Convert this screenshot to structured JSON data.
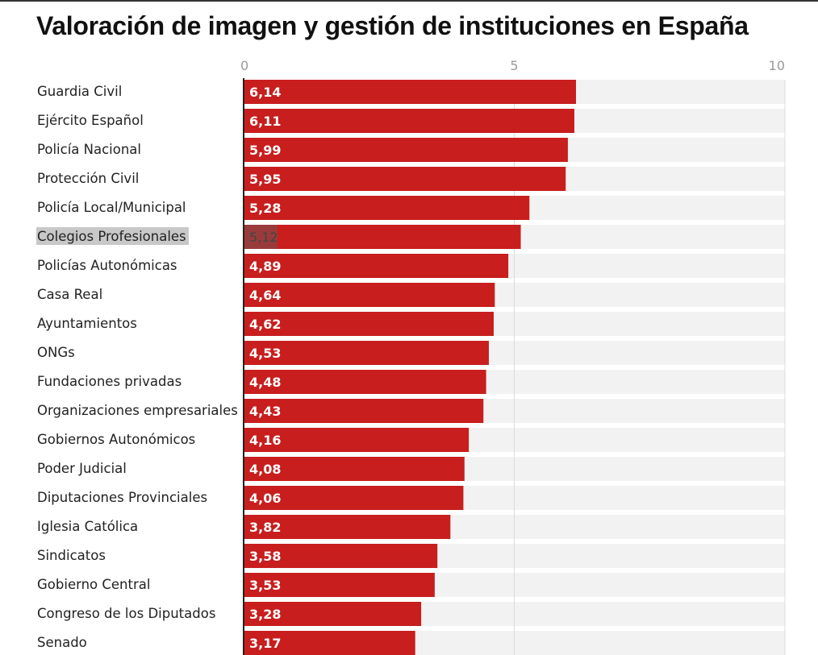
{
  "chart_data": {
    "type": "bar",
    "orientation": "horizontal",
    "title": "Valoración de imagen y gestión de instituciones en España",
    "xlim": [
      0,
      10
    ],
    "x_ticks": [
      "0",
      "5",
      "10"
    ],
    "grid": true,
    "bar_color": "#c81e1e",
    "track_color": "#f2f2f2",
    "highlight_category": "Colegios Profesionales",
    "categories": [
      "Guardia Civil",
      "Ejército Español",
      "Policía Nacional",
      "Protección Civil",
      "Policía Local/Municipal",
      "Colegios Profesionales",
      "Policías Autonómicas",
      "Casa Real",
      "Ayuntamientos",
      "ONGs",
      "Fundaciones privadas",
      "Organizaciones empresariales",
      "Gobiernos Autonómicos",
      "Poder Judicial",
      "Diputaciones Provinciales",
      "Iglesia Católica",
      "Sindicatos",
      "Gobierno Central",
      "Congreso de los Diputados",
      "Senado"
    ],
    "values": [
      6.14,
      6.11,
      5.99,
      5.95,
      5.28,
      5.12,
      4.89,
      4.64,
      4.62,
      4.53,
      4.48,
      4.43,
      4.16,
      4.08,
      4.06,
      3.82,
      3.58,
      3.53,
      3.28,
      3.17
    ],
    "value_labels": [
      "6,14",
      "6,11",
      "5,99",
      "5,95",
      "5,28",
      "5,12",
      "4,89",
      "4,64",
      "4,62",
      "4,53",
      "4,48",
      "4,43",
      "4,16",
      "4,08",
      "4,06",
      "3,82",
      "3,58",
      "3,53",
      "3,28",
      "3,17"
    ]
  }
}
